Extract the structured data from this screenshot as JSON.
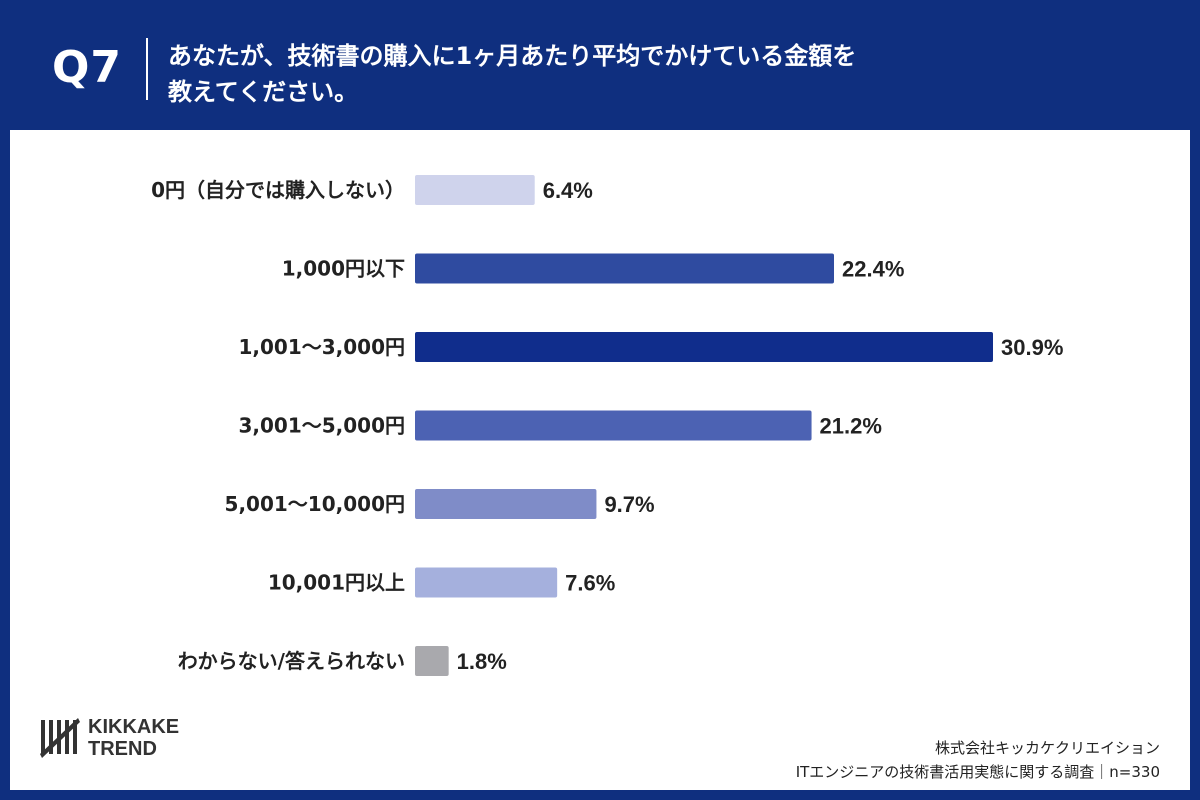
{
  "header": {
    "qnum": "Q7",
    "question_line1": "あなたが、技術書の購入に1ヶ月あたり平均でかけている金額を",
    "question_line2": "教えてください。"
  },
  "chart_data": {
    "type": "bar",
    "orientation": "horizontal",
    "categories": [
      "0円（自分では購入しない）",
      "1,000円以下",
      "1,001〜3,000円",
      "3,001〜5,000円",
      "5,001〜10,000円",
      "10,001円以上",
      "わからない/答えられない"
    ],
    "values": [
      6.4,
      22.4,
      30.9,
      21.2,
      9.7,
      7.6,
      1.8
    ],
    "value_labels": [
      "6.4%",
      "22.4%",
      "30.9%",
      "21.2%",
      "9.7%",
      "7.6%",
      "1.8%"
    ],
    "colors": [
      "#cfd3ec",
      "#2f4ba0",
      "#102d8c",
      "#4c62b3",
      "#7f8cc8",
      "#a5b0dd",
      "#a9a9ad"
    ],
    "unit": "%",
    "xlim": [
      0,
      32
    ],
    "grid": false,
    "legend": "none"
  },
  "logo": {
    "line1": "KIKKAKE",
    "line2": "TREND"
  },
  "source": {
    "company": "株式会社キッカケクリエイション",
    "survey": "ITエンジニアの技術書活用実態に関する調査｜n=330"
  }
}
